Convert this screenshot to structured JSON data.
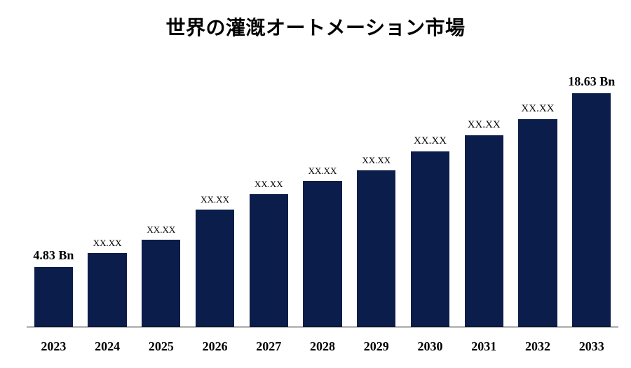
{
  "chart": {
    "type": "bar",
    "title": "世界の灌漑オートメーション市場",
    "title_fontsize": 28,
    "title_fontweight": "bold",
    "title_color": "#000000",
    "background_color": "#ffffff",
    "bar_color": "#0b1d4a",
    "baseline_color": "#000000",
    "baseline_width": 1,
    "bar_width_ratio": 0.72,
    "y_reference_max": 20.5,
    "x_categories": [
      "2023",
      "2024",
      "2025",
      "2026",
      "2027",
      "2028",
      "2029",
      "2030",
      "2031",
      "2032",
      "2033"
    ],
    "x_label_fontsize": 18,
    "x_label_fontweight": "bold",
    "x_label_color": "#000000",
    "bars": [
      {
        "value": 4.83,
        "label": "4.83 Bn",
        "label_fontsize": 18,
        "label_fontweight": "bold"
      },
      {
        "value": 5.9,
        "label": "XX.XX",
        "label_fontsize": 13,
        "label_fontweight": "normal"
      },
      {
        "value": 7.0,
        "label": "XX.XX",
        "label_fontsize": 13,
        "label_fontweight": "normal"
      },
      {
        "value": 9.4,
        "label": "XX.XX",
        "label_fontsize": 13,
        "label_fontweight": "normal"
      },
      {
        "value": 10.6,
        "label": "XX.XX",
        "label_fontsize": 13,
        "label_fontweight": "normal"
      },
      {
        "value": 11.7,
        "label": "XX.XX",
        "label_fontsize": 13,
        "label_fontweight": "normal"
      },
      {
        "value": 12.5,
        "label": "XX.XX",
        "label_fontsize": 13,
        "label_fontweight": "normal"
      },
      {
        "value": 14.0,
        "label": "XX.XX",
        "label_fontsize": 15,
        "label_fontweight": "normal"
      },
      {
        "value": 15.3,
        "label": "XX.XX",
        "label_fontsize": 15,
        "label_fontweight": "normal"
      },
      {
        "value": 16.6,
        "label": "XX.XX",
        "label_fontsize": 15,
        "label_fontweight": "normal"
      },
      {
        "value": 18.63,
        "label": "18.63 Bn",
        "label_fontsize": 18,
        "label_fontweight": "bold"
      }
    ]
  }
}
